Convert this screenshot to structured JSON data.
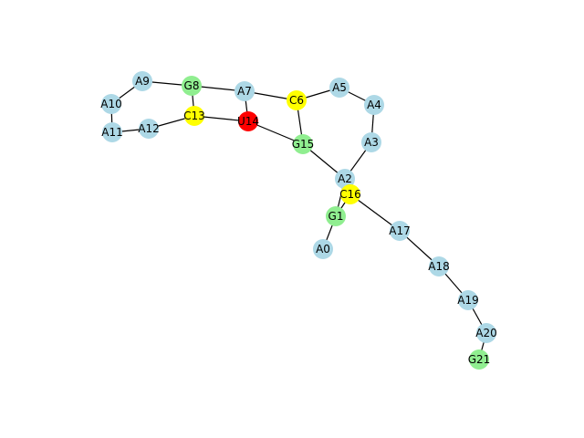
{
  "colors": {
    "default": "#add8e6",
    "G": "#90ee90",
    "C": "#ffff00",
    "U": "#ff0000"
  },
  "nodes": [
    {
      "id": "A0",
      "label": "A0",
      "color": "default"
    },
    {
      "id": "G1",
      "label": "G1",
      "color": "G"
    },
    {
      "id": "A2",
      "label": "A2",
      "color": "default"
    },
    {
      "id": "A3",
      "label": "A3",
      "color": "default"
    },
    {
      "id": "A4",
      "label": "A4",
      "color": "default"
    },
    {
      "id": "A5",
      "label": "A5",
      "color": "default"
    },
    {
      "id": "C6",
      "label": "C6",
      "color": "C"
    },
    {
      "id": "A7",
      "label": "A7",
      "color": "default"
    },
    {
      "id": "G8",
      "label": "G8",
      "color": "G"
    },
    {
      "id": "A9",
      "label": "A9",
      "color": "default"
    },
    {
      "id": "A10",
      "label": "A10",
      "color": "default"
    },
    {
      "id": "A11",
      "label": "A11",
      "color": "default"
    },
    {
      "id": "A12",
      "label": "A12",
      "color": "default"
    },
    {
      "id": "C13",
      "label": "C13",
      "color": "C"
    },
    {
      "id": "U14",
      "label": "U14",
      "color": "U"
    },
    {
      "id": "G15",
      "label": "G15",
      "color": "G"
    },
    {
      "id": "C16",
      "label": "C16",
      "color": "C"
    },
    {
      "id": "A17",
      "label": "A17",
      "color": "default"
    },
    {
      "id": "A18",
      "label": "A18",
      "color": "default"
    },
    {
      "id": "A19",
      "label": "A19",
      "color": "default"
    },
    {
      "id": "A20",
      "label": "A20",
      "color": "default"
    },
    {
      "id": "G21",
      "label": "G21",
      "color": "G"
    }
  ],
  "edges": [
    [
      "A0",
      "G1"
    ],
    [
      "G1",
      "C16"
    ],
    [
      "G1",
      "A2"
    ],
    [
      "A2",
      "A3"
    ],
    [
      "A2",
      "G15"
    ],
    [
      "A3",
      "A4"
    ],
    [
      "A4",
      "A5"
    ],
    [
      "A5",
      "C6"
    ],
    [
      "C6",
      "A7"
    ],
    [
      "C6",
      "G15"
    ],
    [
      "A7",
      "G8"
    ],
    [
      "A7",
      "U14"
    ],
    [
      "G8",
      "A9"
    ],
    [
      "G8",
      "C13"
    ],
    [
      "A9",
      "A10"
    ],
    [
      "A10",
      "A11"
    ],
    [
      "A11",
      "A12"
    ],
    [
      "A12",
      "C13"
    ],
    [
      "C13",
      "U14"
    ],
    [
      "U14",
      "G15"
    ],
    [
      "C16",
      "A17"
    ],
    [
      "A17",
      "A18"
    ],
    [
      "A18",
      "A19"
    ],
    [
      "A19",
      "A20"
    ],
    [
      "A20",
      "G21"
    ]
  ]
}
